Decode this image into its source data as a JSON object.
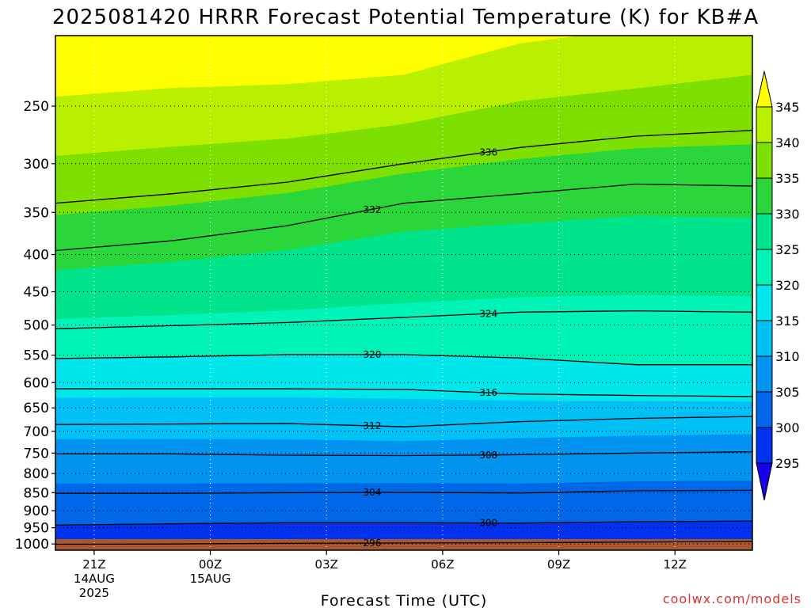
{
  "chart_data": {
    "type": "heatmap",
    "title": "2025081420 HRRR Forecast Potential Temperature (K) for KB#A",
    "xlabel": "Forecast Time (UTC)",
    "ylabel": "",
    "x_ticks": [
      {
        "label": "21Z",
        "sub1": "14AUG",
        "sub2": "2025",
        "hour": 0
      },
      {
        "label": "00Z",
        "sub1": "15AUG",
        "sub2": "",
        "hour": 3
      },
      {
        "label": "03Z",
        "sub1": "",
        "sub2": "",
        "hour": 6
      },
      {
        "label": "06Z",
        "sub1": "",
        "sub2": "",
        "hour": 9
      },
      {
        "label": "09Z",
        "sub1": "",
        "sub2": "",
        "hour": 12
      },
      {
        "label": "12Z",
        "sub1": "",
        "sub2": "",
        "hour": 15
      }
    ],
    "xlim_hours": [
      -1,
      17
    ],
    "y_ticks": [
      250,
      300,
      350,
      400,
      450,
      500,
      550,
      600,
      650,
      700,
      750,
      800,
      850,
      900,
      950,
      1000
    ],
    "y_axis_scale": "log-pressure (hPa)",
    "ylim": [
      1020,
      200
    ],
    "colorbar": {
      "levels": [
        295,
        300,
        305,
        310,
        315,
        320,
        325,
        330,
        335,
        340,
        345
      ],
      "labels": [
        "295",
        "300",
        "305",
        "310",
        "315",
        "320",
        "325",
        "330",
        "335",
        "340",
        "345"
      ],
      "colors": [
        "#1a00e8",
        "#0032f0",
        "#0068e8",
        "#0094f0",
        "#00c0f6",
        "#00e6ea",
        "#00f4b8",
        "#00e48c",
        "#2ad63a",
        "#7ee000",
        "#b9f000",
        "#ffff00"
      ]
    },
    "contour_lines": [
      {
        "theta": 296,
        "label": "296",
        "pressure": [
          1001,
          1000,
          998,
          997,
          996,
          994,
          992
        ]
      },
      {
        "theta": 300,
        "label": "300",
        "pressure": [
          942,
          938,
          935,
          935,
          936,
          932,
          930
        ]
      },
      {
        "theta": 304,
        "label": "304",
        "pressure": [
          852,
          852,
          850,
          849,
          851,
          845,
          844
        ]
      },
      {
        "theta": 308,
        "label": "308",
        "pressure": [
          752,
          752,
          755,
          756,
          754,
          750,
          747
        ]
      },
      {
        "theta": 312,
        "label": "312",
        "pressure": [
          685,
          684,
          683,
          690,
          679,
          672,
          668
        ]
      },
      {
        "theta": 316,
        "label": "316",
        "pressure": [
          612,
          612,
          612,
          613,
          622,
          625,
          627
        ]
      },
      {
        "theta": 320,
        "label": "320",
        "pressure": [
          556,
          553,
          549,
          549,
          555,
          567,
          567
        ]
      },
      {
        "theta": 324,
        "label": "324",
        "pressure": [
          506,
          501,
          496,
          488,
          480,
          478,
          480
        ]
      },
      {
        "theta": 332,
        "label": "332",
        "pressure": [
          395,
          383,
          365,
          340,
          330,
          320,
          322
        ]
      },
      {
        "theta": 336,
        "label": "336",
        "pressure": [
          340,
          330,
          318,
          300,
          285,
          275,
          270
        ]
      }
    ],
    "ground_color": "#a8582f",
    "grid": true
  },
  "footer": {
    "credit": "coolwx.com/models"
  }
}
